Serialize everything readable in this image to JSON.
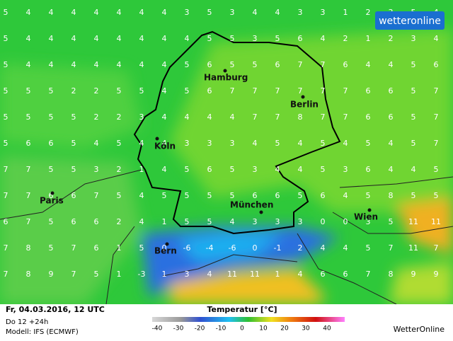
{
  "logo": "wetteronline",
  "cities": [
    "Hamburg",
    "Berlin",
    "Köln",
    "Paris",
    "München",
    "Wien",
    "Bern"
  ],
  "grid": [
    [
      5,
      4,
      4,
      4,
      4,
      4,
      4,
      4,
      3,
      5,
      3,
      4,
      4,
      3,
      3,
      1,
      2,
      3,
      5,
      4
    ],
    [
      5,
      4,
      4,
      4,
      4,
      4,
      4,
      4,
      4,
      5,
      5,
      3,
      5,
      6,
      4,
      2,
      1,
      2,
      3,
      4
    ],
    [
      5,
      4,
      4,
      4,
      4,
      4,
      4,
      4,
      5,
      6,
      5,
      5,
      6,
      7,
      7,
      6,
      4,
      4,
      5,
      6
    ],
    [
      5,
      5,
      5,
      2,
      2,
      5,
      5,
      4,
      5,
      6,
      7,
      7,
      7,
      7,
      7,
      7,
      6,
      6,
      5,
      7
    ],
    [
      5,
      5,
      5,
      5,
      2,
      2,
      3,
      4,
      4,
      4,
      4,
      7,
      7,
      8,
      7,
      7,
      6,
      6,
      5,
      7
    ],
    [
      5,
      6,
      6,
      5,
      4,
      5,
      4,
      4,
      3,
      3,
      3,
      4,
      5,
      4,
      5,
      4,
      5,
      4,
      5,
      7
    ],
    [
      7,
      7,
      5,
      5,
      3,
      2,
      1,
      4,
      5,
      6,
      5,
      3,
      4,
      4,
      5,
      3,
      6,
      4,
      4,
      5
    ],
    [
      7,
      7,
      6,
      6,
      7,
      5,
      4,
      5,
      5,
      5,
      5,
      6,
      6,
      5,
      6,
      4,
      5,
      8,
      5,
      5
    ],
    [
      6,
      7,
      5,
      6,
      6,
      2,
      4,
      1,
      5,
      5,
      4,
      3,
      3,
      3,
      0,
      0,
      3,
      5,
      11,
      11
    ],
    [
      7,
      8,
      5,
      7,
      6,
      1,
      5,
      0,
      -6,
      -4,
      -6,
      0,
      -1,
      2,
      4,
      4,
      5,
      7,
      11,
      7
    ],
    [
      7,
      8,
      9,
      7,
      5,
      1,
      -3,
      1,
      3,
      4,
      11,
      11,
      1,
      4,
      6,
      6,
      7,
      8,
      9,
      9
    ]
  ],
  "footer": {
    "date": "Fr, 04.03.2016, 12 UTC",
    "run": "Do 12 +24h",
    "model": "Modell: IFS (ECMWF)",
    "brand": "WetterOnline"
  },
  "legend": {
    "title": "Temperatur [°C]",
    "ticks": [
      -40,
      -30,
      -20,
      -10,
      0,
      10,
      20,
      30,
      40
    ]
  }
}
